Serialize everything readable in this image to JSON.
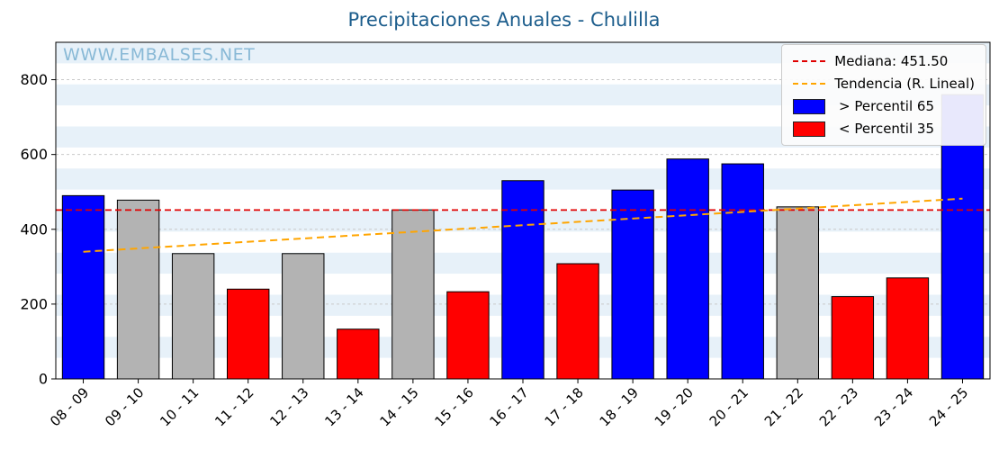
{
  "title": "Precipitaciones Anuales - Chulilla",
  "watermark": "WWW.EMBALSES.NET",
  "legend": {
    "median_label": "Mediana: 451.50",
    "trend_label": "Tendencia (R. Lineal)",
    "p65_label": " > Percentil 65",
    "p35_label": " < Percentil 35"
  },
  "colors": {
    "title": "#1c5d8c",
    "watermark": "#85b7d5",
    "blue": "#0000ff",
    "red": "#ff0000",
    "gray": "#b3b3b3",
    "median": "#e00000",
    "trend": "#ffa500",
    "band": "#e7f1f9",
    "grid": "#c9c9c9",
    "axis": "#000000"
  },
  "chart_data": {
    "type": "bar",
    "title": "Precipitaciones Anuales - Chulilla",
    "xlabel": "",
    "ylabel": "",
    "categories": [
      "08 - 09",
      "09 - 10",
      "10 - 11",
      "11 - 12",
      "12 - 13",
      "13 - 14",
      "14 - 15",
      "15 - 16",
      "16 - 17",
      "17 - 18",
      "18 - 19",
      "19 - 20",
      "20 - 21",
      "21 - 22",
      "22 - 23",
      "23 - 24",
      "24 - 25"
    ],
    "values": [
      490,
      478,
      335,
      240,
      335,
      133,
      452,
      233,
      530,
      308,
      505,
      588,
      575,
      460,
      220,
      270,
      760
    ],
    "bar_colors": [
      "blue",
      "gray",
      "gray",
      "red",
      "gray",
      "red",
      "gray",
      "red",
      "blue",
      "red",
      "blue",
      "blue",
      "blue",
      "gray",
      "red",
      "red",
      "blue"
    ],
    "median_value": 451.5,
    "trend": {
      "start": 340,
      "end": 482
    },
    "yticks": [
      0,
      200,
      400,
      600,
      800
    ],
    "ylim": [
      0,
      900
    ],
    "grid": "dashed horizontal",
    "legend_position": "upper right",
    "legend_entries": [
      {
        "label": "Mediana: 451.50",
        "style": "dashed-line",
        "color_key": "median"
      },
      {
        "label": "Tendencia (R. Lineal)",
        "style": "dashed-line",
        "color_key": "trend"
      },
      {
        "label": " > Percentil 65",
        "style": "box",
        "color_key": "blue"
      },
      {
        "label": " < Percentil 35",
        "style": "box",
        "color_key": "red"
      }
    ]
  }
}
